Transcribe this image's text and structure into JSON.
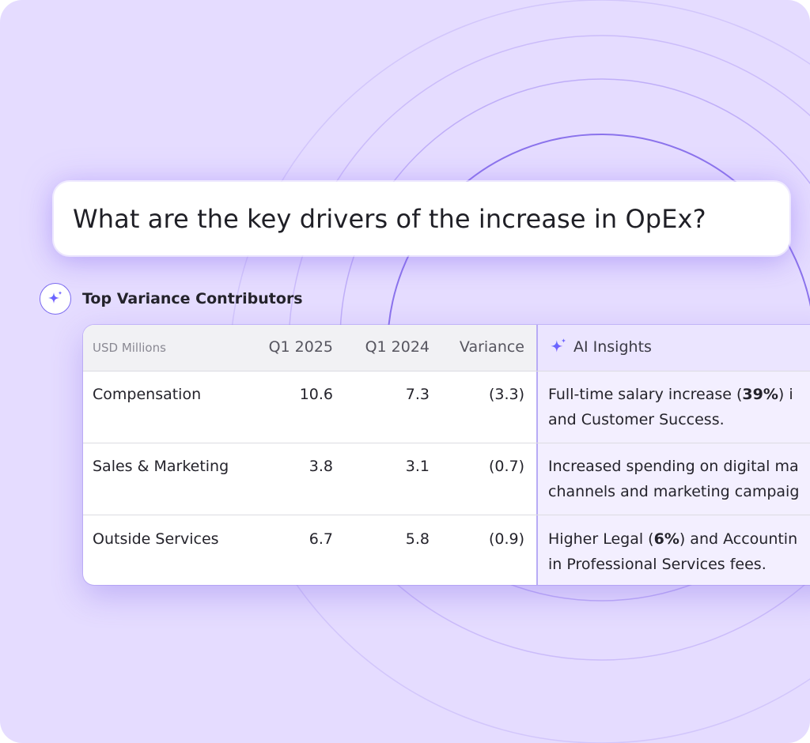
{
  "question": {
    "text": "What are the key drivers of the increase in OpEx?"
  },
  "section": {
    "title": "Top Variance Contributors",
    "icon": "sparkle-icon"
  },
  "table": {
    "unit_label": "USD Millions",
    "columns": [
      "Q1 2025",
      "Q1 2024",
      "Variance"
    ],
    "insights_header": "AI Insights",
    "rows": [
      {
        "category": "Compensation",
        "q1_2025": "10.6",
        "q1_2024": "7.3",
        "variance": "(3.3)",
        "insight_line1_pre": "Full-time salary increase (",
        "insight_line1_bold": "39%",
        "insight_line1_post": ") i",
        "insight_line2": "and Customer Success."
      },
      {
        "category": "Sales & Marketing",
        "q1_2025": "3.8",
        "q1_2024": "3.1",
        "variance": "(0.7)",
        "insight_line1_pre": "Increased spending on digital ma",
        "insight_line1_bold": "",
        "insight_line1_post": "",
        "insight_line2": "channels and marketing campaig"
      },
      {
        "category": "Outside Services",
        "q1_2025": "6.7",
        "q1_2024": "5.8",
        "variance": "(0.9)",
        "insight_line1_pre": "Higher Legal (",
        "insight_line1_bold": "6%",
        "insight_line1_post": ") and Accountin",
        "insight_line2": "in Professional Services fees."
      }
    ]
  },
  "colors": {
    "background": "#e5dcff",
    "accent": "#7c6cf0",
    "divider": "#b8abf5",
    "insights_bg": "#f3efff"
  }
}
